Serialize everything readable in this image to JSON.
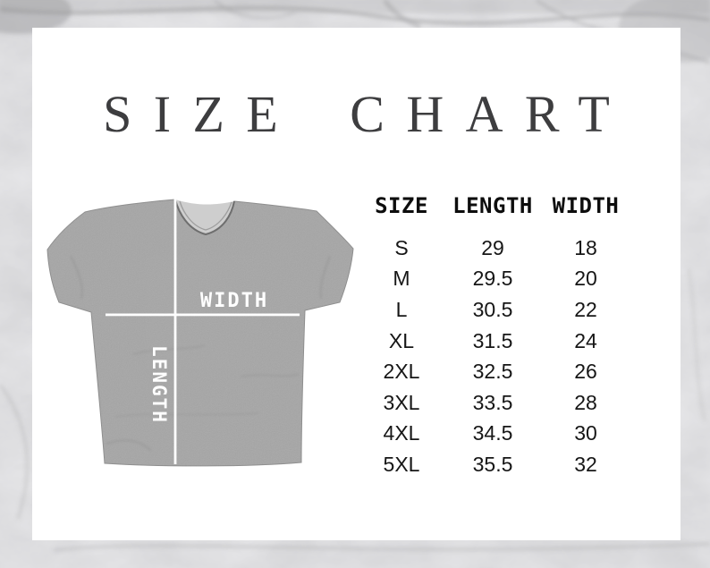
{
  "page": {
    "title": "SIZE CHART"
  },
  "shirt": {
    "width_label": "WIDTH",
    "length_label": "LENGTH"
  },
  "size_table": {
    "headers": [
      "SIZE",
      "LENGTH",
      "WIDTH"
    ],
    "rows": [
      [
        "S",
        "29",
        "18"
      ],
      [
        "M",
        "29.5",
        "20"
      ],
      [
        "L",
        "30.5",
        "22"
      ],
      [
        "XL",
        "31.5",
        "24"
      ],
      [
        "2XL",
        "32.5",
        "26"
      ],
      [
        "3XL",
        "33.5",
        "28"
      ],
      [
        "4XL",
        "34.5",
        "30"
      ],
      [
        "5XL",
        "35.5",
        "32"
      ]
    ]
  },
  "chart_data": {
    "type": "table",
    "title": "SIZE CHART",
    "columns": [
      "SIZE",
      "LENGTH",
      "WIDTH"
    ],
    "rows": [
      {
        "size": "S",
        "length": 29,
        "width": 18
      },
      {
        "size": "M",
        "length": 29.5,
        "width": 20
      },
      {
        "size": "L",
        "length": 30.5,
        "width": 22
      },
      {
        "size": "XL",
        "length": 31.5,
        "width": 24
      },
      {
        "size": "2XL",
        "length": 32.5,
        "width": 26
      },
      {
        "size": "3XL",
        "length": 33.5,
        "width": 28
      },
      {
        "size": "4XL",
        "length": 34.5,
        "width": 30
      },
      {
        "size": "5XL",
        "length": 35.5,
        "width": 32
      }
    ]
  },
  "colors": {
    "marble_background": "#d7d7d9",
    "marble_vein": "#9b9b9d",
    "card_background": "#ffffff",
    "title_text": "#3d3d3f",
    "table_text": "#161616",
    "shirt_gray": "#a6a6a6",
    "shirt_outline": "#8d8d8d",
    "measure_line": "#ffffff"
  }
}
